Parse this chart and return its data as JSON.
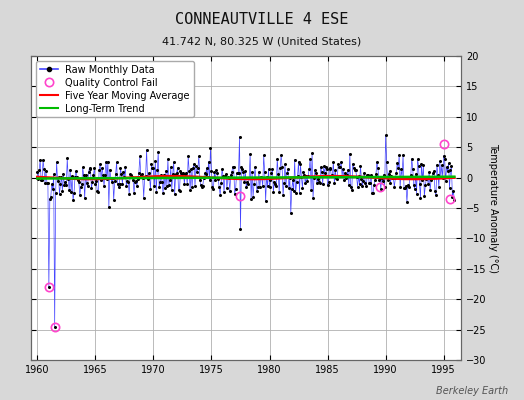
{
  "title": "CONNEAUTVILLE 4 ESE",
  "subtitle": "41.742 N, 80.325 W (United States)",
  "ylabel": "Temperature Anomaly (°C)",
  "watermark": "Berkeley Earth",
  "ylim": [
    -30,
    20
  ],
  "xlim": [
    1959.5,
    1996.5
  ],
  "xticks": [
    1960,
    1965,
    1970,
    1975,
    1980,
    1985,
    1990,
    1995
  ],
  "yticks": [
    -30,
    -25,
    -20,
    -15,
    -10,
    -5,
    0,
    5,
    10,
    15,
    20
  ],
  "bg_color": "#d8d8d8",
  "plot_bg_color": "#ffffff",
  "grid_color": "#b0b0b0",
  "raw_line_color": "#4444ff",
  "raw_dot_color": "#000000",
  "qc_fail_color": "#ff44cc",
  "moving_avg_color": "#ff0000",
  "trend_color": "#00bb00",
  "seed": 42,
  "qc_fail_points": [
    [
      1961.0,
      -18.0
    ],
    [
      1961.5,
      -24.5
    ],
    [
      1977.5,
      -3.0
    ],
    [
      1989.5,
      -1.5
    ],
    [
      1995.0,
      5.5
    ],
    [
      1995.5,
      -3.5
    ]
  ],
  "start_year": 1960.0,
  "end_year": 1996.0,
  "title_fontsize": 11,
  "subtitle_fontsize": 8,
  "tick_fontsize": 7,
  "ylabel_fontsize": 7,
  "legend_fontsize": 7,
  "watermark_fontsize": 7
}
